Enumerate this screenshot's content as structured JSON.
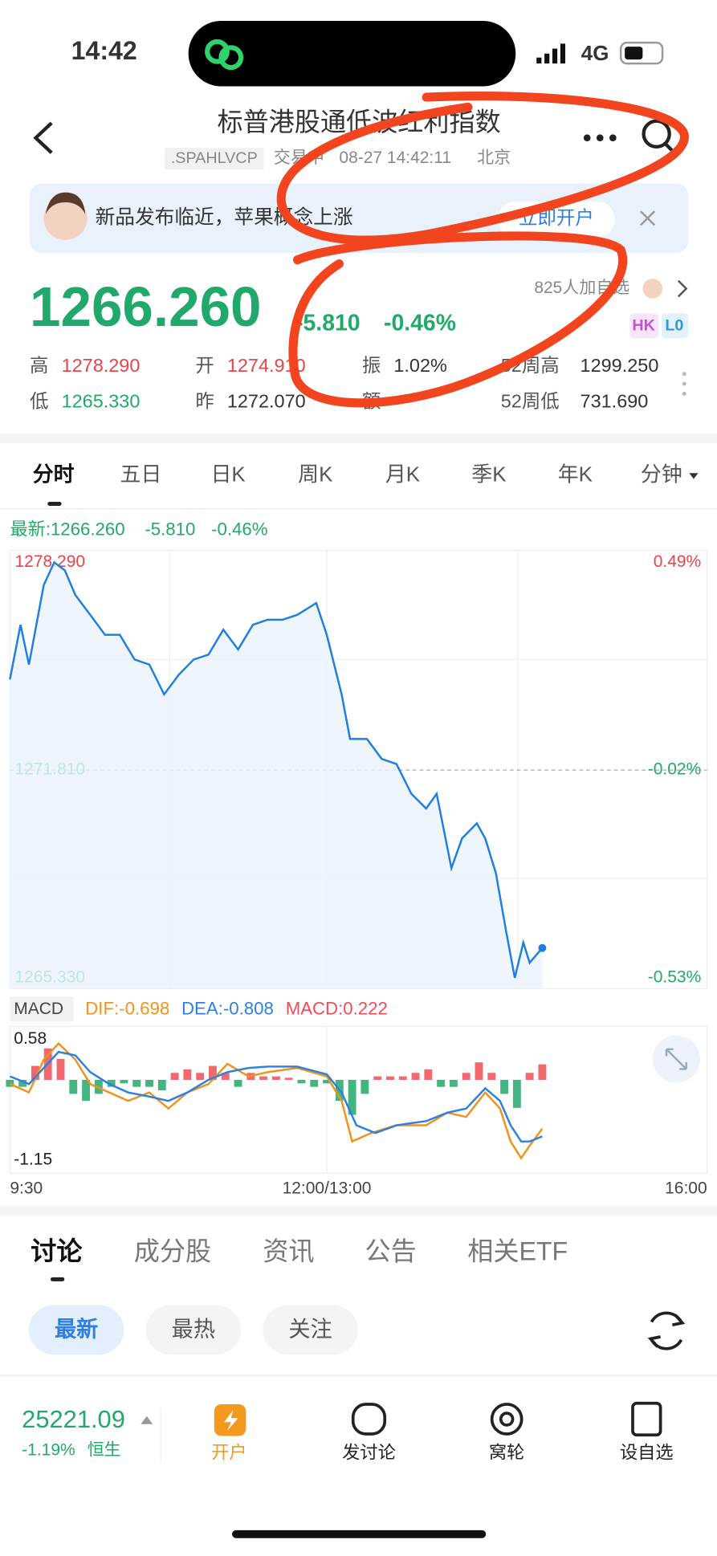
{
  "status_bar": {
    "time": "14:42",
    "network": "4G"
  },
  "header": {
    "title": "标普港股通低波红利指数",
    "code": ".SPAHLVCP",
    "status": "交易中",
    "datetime": "08-27 14:42:11",
    "location": "北京"
  },
  "banner": {
    "text": "新品发布临近，苹果概念上涨",
    "button": "立即开户"
  },
  "quote": {
    "price": "1266.260",
    "change": "-5.810",
    "change_pct": "-0.46%",
    "followers": "825人加自选",
    "badges": [
      "HK",
      "L0"
    ],
    "stats": [
      {
        "label": "高",
        "value": "1278.290"
      },
      {
        "label": "开",
        "value": "1274.910"
      },
      {
        "label": "振",
        "value": "1.02%"
      },
      {
        "label": "52周高",
        "value": "1299.250"
      },
      {
        "label": "低",
        "value": "1265.330"
      },
      {
        "label": "昨",
        "value": "1272.070"
      },
      {
        "label": "额"
      },
      {
        "label": "52周低",
        "value": "731.690"
      }
    ]
  },
  "period_tabs": [
    "分时",
    "五日",
    "日K",
    "周K",
    "月K",
    "季K",
    "年K",
    "分钟"
  ],
  "latest_line": {
    "label": "最新:1266.260",
    "change": "-5.810",
    "pct": "-0.46%"
  },
  "intraday": {
    "type": "line",
    "color": "#1f7fe0",
    "x": [
      0,
      5,
      9,
      16,
      21,
      26,
      31,
      38,
      45,
      52,
      59,
      66,
      73,
      80,
      87,
      94,
      101,
      108,
      115,
      122,
      129,
      136,
      145,
      150,
      157,
      161,
      169,
      176,
      183,
      190,
      197,
      202,
      209,
      214,
      221,
      225,
      230,
      235,
      239,
      243,
      246,
      252
    ],
    "values": [
      1274.64,
      1276.34,
      1275.1,
      1277.58,
      1278.29,
      1278.04,
      1277.27,
      1276.65,
      1276.03,
      1276.03,
      1275.26,
      1275.1,
      1274.17,
      1274.79,
      1275.26,
      1275.41,
      1276.19,
      1275.57,
      1276.34,
      1276.5,
      1276.5,
      1276.65,
      1277.02,
      1276.03,
      1274.17,
      1272.78,
      1272.78,
      1272.16,
      1272.0,
      1271.07,
      1270.61,
      1271.07,
      1268.75,
      1269.68,
      1270.15,
      1269.68,
      1268.6,
      1266.74,
      1265.33,
      1266.43,
      1265.8,
      1266.26
    ],
    "xlim": [
      0,
      330
    ],
    "ylim": [
      1265.33,
      1278.29
    ],
    "yticks": [
      {
        "value": 1278.29,
        "label": "1278.290"
      },
      {
        "value": 1271.81,
        "label": "1271.810"
      },
      {
        "value": 1265.33,
        "label": "1265.330"
      }
    ],
    "right_labels": [
      "0.49%",
      "-0.02%",
      "-0.53%"
    ],
    "xticks": [
      {
        "value": 0,
        "label": "9:30"
      },
      {
        "value": 150,
        "label": "12:00/13:00"
      },
      {
        "value": 330,
        "label": "16:00"
      }
    ]
  },
  "macd": {
    "type": "macd",
    "title": "MACD",
    "xlim": [
      0,
      330
    ],
    "ylim": [
      -1.15,
      0.58
    ],
    "yticks": [
      {
        "value": 0.58,
        "label": "0.58"
      },
      {
        "value": -1.15,
        "label": "-1.15"
      }
    ],
    "series": [
      {
        "name": "DIF:-0.698",
        "color": "#f0921e",
        "x": [
          0,
          9,
          16,
          23,
          31,
          38,
          47,
          56,
          66,
          75,
          84,
          94,
          103,
          113,
          122,
          136,
          150,
          157,
          162,
          171,
          183,
          197,
          207,
          216,
          225,
          232,
          237,
          242,
          246,
          252
        ],
        "values": [
          -0.06,
          -0.18,
          0.29,
          0.52,
          0.29,
          -0.06,
          -0.18,
          -0.3,
          -0.18,
          -0.41,
          -0.18,
          -0.06,
          0.23,
          0.05,
          0.11,
          0.17,
          0.05,
          -0.3,
          -0.88,
          -0.76,
          -0.65,
          -0.65,
          -0.47,
          -0.53,
          -0.18,
          -0.41,
          -0.88,
          -1.12,
          -0.94,
          -0.698
        ]
      },
      {
        "name": "DEA:-0.808",
        "color": "#2f7fe0",
        "x": [
          0,
          9,
          16,
          23,
          31,
          38,
          47,
          56,
          66,
          75,
          84,
          94,
          103,
          113,
          122,
          136,
          150,
          157,
          164,
          173,
          183,
          197,
          207,
          216,
          225,
          232,
          237,
          242,
          246,
          252
        ],
        "values": [
          0.05,
          -0.06,
          0.17,
          0.4,
          0.35,
          0.11,
          -0.06,
          -0.18,
          -0.24,
          -0.3,
          -0.18,
          0.0,
          0.11,
          0.17,
          0.19,
          0.19,
          0.08,
          -0.18,
          -0.65,
          -0.76,
          -0.65,
          -0.59,
          -0.47,
          -0.41,
          -0.12,
          -0.3,
          -0.65,
          -0.88,
          -0.88,
          -0.808
        ]
      }
    ],
    "histogram": {
      "name": "MACD:0.222",
      "up_color": "#ee4d55",
      "down_color": "#21a86b",
      "x": [
        0,
        6,
        12,
        18,
        24,
        30,
        36,
        42,
        48,
        54,
        60,
        66,
        72,
        78,
        84,
        90,
        96,
        102,
        108,
        114,
        120,
        126,
        132,
        138,
        144,
        150,
        156,
        162,
        168,
        174,
        180,
        186,
        192,
        198,
        204,
        210,
        216,
        222,
        228,
        234,
        240,
        246,
        252
      ],
      "values": [
        -0.1,
        -0.1,
        0.2,
        0.45,
        0.3,
        -0.2,
        -0.3,
        -0.2,
        -0.1,
        -0.05,
        -0.1,
        -0.1,
        -0.15,
        0.1,
        0.15,
        0.1,
        0.2,
        0.1,
        -0.1,
        0.1,
        0.05,
        0.05,
        0.03,
        -0.05,
        -0.1,
        -0.05,
        -0.3,
        -0.5,
        -0.2,
        0.05,
        0.05,
        0.05,
        0.1,
        0.15,
        -0.1,
        -0.1,
        0.1,
        0.25,
        0.1,
        -0.2,
        -0.4,
        0.1,
        0.222
      ]
    }
  },
  "content_tabs": [
    "讨论",
    "成分股",
    "资讯",
    "公告",
    "相关ETF"
  ],
  "filters": [
    "最新",
    "最热",
    "关注"
  ],
  "bottom_bar": {
    "index_value": "25221.09",
    "index_change": "-1.19%",
    "index_name": "恒生",
    "actions": [
      "开户",
      "发讨论",
      "窝轮",
      "设自选"
    ]
  }
}
